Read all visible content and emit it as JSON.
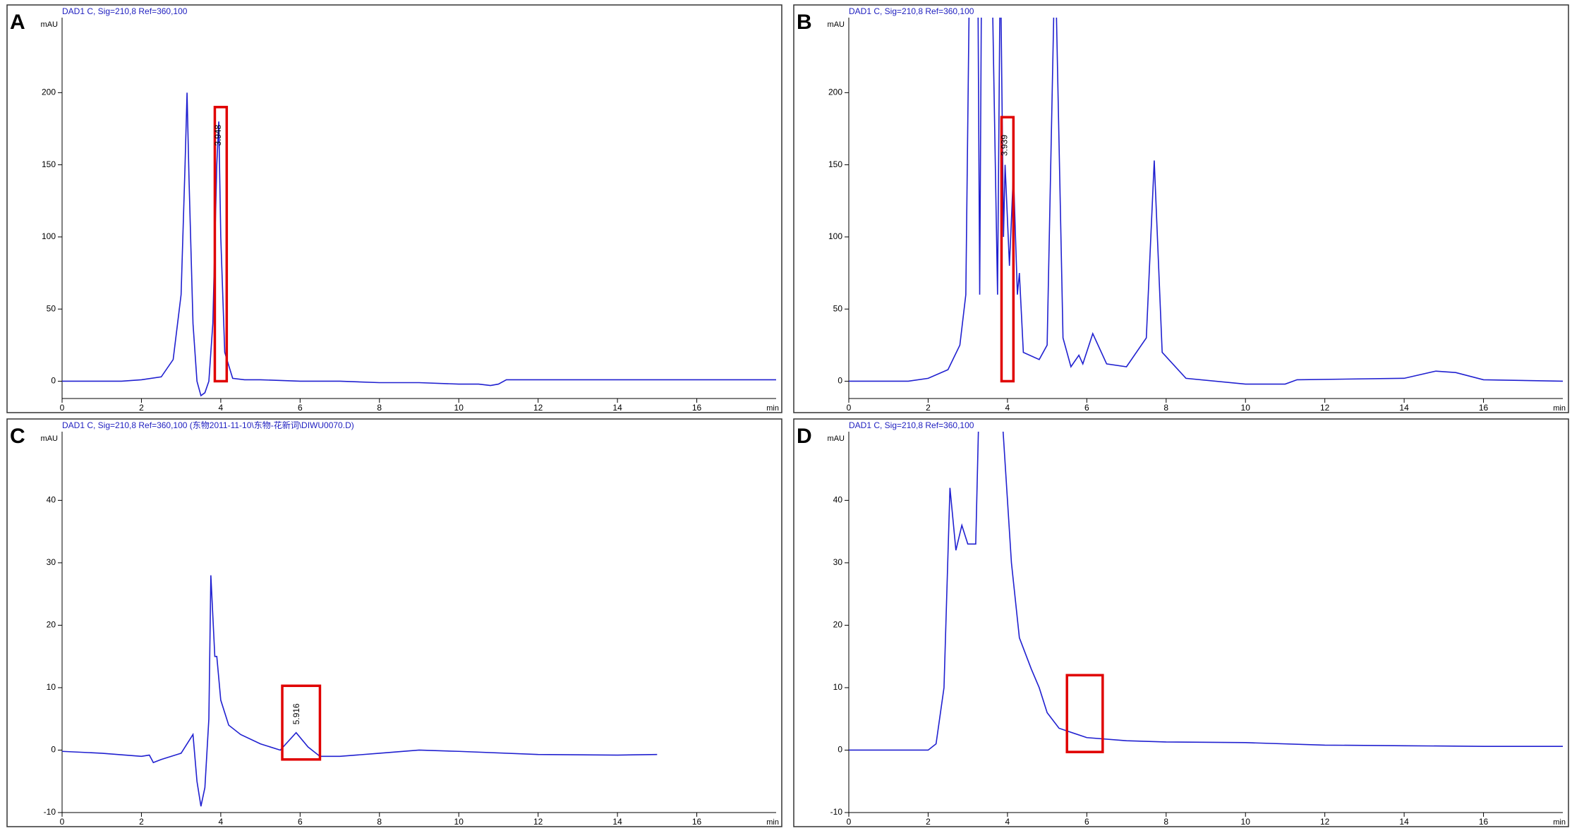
{
  "chart_data": [
    {
      "type": "line",
      "panel_label": "A",
      "title": "DAD1 C, Sig=210,8 Ref=360,100",
      "x_label": "min",
      "y_label": "mAU",
      "x": [
        0,
        1.5,
        2.0,
        2.5,
        2.8,
        3.0,
        3.1,
        3.15,
        3.2,
        3.3,
        3.4,
        3.5,
        3.6,
        3.7,
        3.8,
        3.9,
        3.95,
        4.0,
        4.1,
        4.3,
        4.6,
        5,
        6,
        7,
        8,
        9,
        10,
        10.5,
        10.8,
        11.0,
        11.2,
        12,
        14,
        16,
        18
      ],
      "values": [
        0,
        0,
        1,
        3,
        15,
        60,
        150,
        200,
        140,
        40,
        0,
        -10,
        -8,
        0,
        40,
        150,
        180,
        100,
        20,
        2,
        1,
        1,
        0,
        0,
        -1,
        -1,
        -2,
        -2,
        -3,
        -2,
        1,
        1,
        1,
        1,
        1
      ],
      "color": "#2020d0",
      "xlim": [
        0,
        18
      ],
      "ylim": [
        -12,
        252
      ],
      "xticks": [
        0,
        2,
        4,
        6,
        8,
        10,
        12,
        14,
        16
      ],
      "yticks": [
        0,
        50,
        100,
        150,
        200
      ],
      "annotations": [
        {
          "text": "3.948"
        }
      ]
    },
    {
      "type": "line",
      "panel_label": "B",
      "title": "DAD1 C, Sig=210,8 Ref=360,100",
      "x_label": "min",
      "y_label": "mAU",
      "x": [
        0,
        1.5,
        2.0,
        2.5,
        2.8,
        2.95,
        3.05,
        3.25,
        3.3,
        3.35,
        3.6,
        3.75,
        3.82,
        3.9,
        3.94,
        4.05,
        4.15,
        4.25,
        4.3,
        4.4,
        4.8,
        5.0,
        5.2,
        5.4,
        5.6,
        5.8,
        5.9,
        6.15,
        6.5,
        7.0,
        7.5,
        7.7,
        7.9,
        8.5,
        10,
        11,
        11.3,
        14,
        14.8,
        15.3,
        16,
        18
      ],
      "values": [
        0,
        0,
        2,
        8,
        25,
        60,
        300,
        300,
        60,
        300,
        300,
        60,
        300,
        100,
        150,
        80,
        145,
        60,
        75,
        20,
        15,
        25,
        300,
        30,
        10,
        18,
        12,
        33,
        12,
        10,
        30,
        153,
        20,
        2,
        -2,
        -2,
        1,
        2,
        7,
        6,
        1,
        0
      ],
      "color": "#2020d0",
      "xlim": [
        0,
        18
      ],
      "ylim": [
        -12,
        252
      ],
      "xticks": [
        0,
        2,
        4,
        6,
        8,
        10,
        12,
        14,
        16
      ],
      "yticks": [
        0,
        50,
        100,
        150,
        200
      ],
      "annotations": [
        {
          "text": "3.939"
        }
      ]
    },
    {
      "type": "line",
      "panel_label": "C",
      "title": "DAD1 C, Sig=210,8 Ref=360,100 (东物2011-11-10\\东物-花新词\\DIWU0070.D)",
      "x_label": "min",
      "y_label": "mAU",
      "x": [
        0,
        1,
        2,
        2.2,
        2.3,
        2.5,
        3.0,
        3.3,
        3.4,
        3.5,
        3.6,
        3.7,
        3.75,
        3.85,
        3.9,
        4.0,
        4.2,
        4.5,
        5.0,
        5.5,
        5.9,
        6.2,
        6.5,
        7,
        8,
        9,
        10,
        12,
        14,
        15
      ],
      "values": [
        -0.2,
        -0.5,
        -1,
        -0.8,
        -2,
        -1.5,
        -0.5,
        2.5,
        -5,
        -9,
        -6,
        5,
        28,
        15,
        15,
        8,
        4,
        2.5,
        1,
        0,
        2.8,
        0.5,
        -1,
        -1,
        -0.5,
        0,
        -0.2,
        -0.7,
        -0.8,
        -0.7
      ],
      "color": "#2020d0",
      "xlim": [
        0,
        18
      ],
      "ylim": [
        -10,
        51
      ],
      "xticks": [
        0,
        2,
        4,
        6,
        8,
        10,
        12,
        14,
        16
      ],
      "yticks": [
        -10,
        0,
        10,
        20,
        30,
        40
      ],
      "annotations": [
        {
          "text": "5.916"
        }
      ]
    },
    {
      "type": "line",
      "panel_label": "D",
      "title": "DAD1 C, Sig=210,8 Ref=360,100",
      "x_label": "min",
      "y_label": "mAU",
      "x": [
        0,
        2,
        2.2,
        2.4,
        2.55,
        2.7,
        2.85,
        3.0,
        3.2,
        3.3,
        3.8,
        3.95,
        4.1,
        4.3,
        4.6,
        4.8,
        5.0,
        5.3,
        6,
        7,
        8,
        10,
        12,
        14,
        16,
        18
      ],
      "values": [
        0,
        0,
        1,
        10,
        42,
        32,
        36,
        33,
        33,
        60,
        60,
        45,
        30,
        18,
        13,
        10,
        6,
        3.5,
        2,
        1.5,
        1.3,
        1.2,
        0.8,
        0.7,
        0.6,
        0.6
      ],
      "color": "#2020d0",
      "xlim": [
        0,
        18
      ],
      "ylim": [
        -10,
        51
      ],
      "xticks": [
        0,
        2,
        4,
        6,
        8,
        10,
        12,
        14,
        16
      ],
      "yticks": [
        -10,
        0,
        10,
        20,
        30,
        40
      ],
      "annotations": []
    }
  ]
}
